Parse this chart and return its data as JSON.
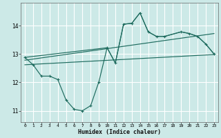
{
  "xlabel": "Humidex (Indice chaleur)",
  "ylabel": "",
  "bg_color": "#cce9e7",
  "grid_color": "#ffffff",
  "line_color": "#1e6b5e",
  "xlim": [
    -0.5,
    23.5
  ],
  "ylim": [
    10.6,
    14.8
  ],
  "yticks": [
    11,
    12,
    13,
    14
  ],
  "xticks": [
    0,
    1,
    2,
    3,
    4,
    5,
    6,
    7,
    8,
    9,
    10,
    11,
    12,
    13,
    14,
    15,
    16,
    17,
    18,
    19,
    20,
    21,
    22,
    23
  ],
  "line1_x": [
    0,
    1,
    2,
    3,
    4,
    5,
    6,
    7,
    8,
    9,
    10,
    11,
    12,
    13,
    14,
    15,
    16,
    17,
    19,
    20,
    21,
    22,
    23
  ],
  "line1_y": [
    12.88,
    12.62,
    12.22,
    12.22,
    12.1,
    11.38,
    11.05,
    11.0,
    11.18,
    12.02,
    13.22,
    12.68,
    14.05,
    14.08,
    14.45,
    13.78,
    13.62,
    13.62,
    13.78,
    13.72,
    13.62,
    13.35,
    13.0
  ],
  "line2_x": [
    0,
    10,
    11,
    12,
    13,
    14,
    15,
    16,
    17,
    19,
    20,
    21,
    22,
    23
  ],
  "line2_y": [
    12.88,
    13.22,
    12.68,
    14.05,
    14.08,
    14.45,
    13.78,
    13.62,
    13.62,
    13.78,
    13.72,
    13.62,
    13.35,
    13.0
  ],
  "line3_x": [
    0,
    23
  ],
  "line3_y": [
    12.78,
    13.72
  ],
  "line4_x": [
    0,
    23
  ],
  "line4_y": [
    12.62,
    12.98
  ]
}
